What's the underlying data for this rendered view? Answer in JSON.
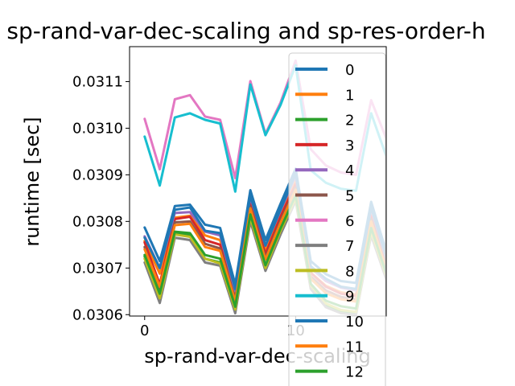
{
  "chart_data": {
    "type": "line",
    "title": "sp-rand-var-dec-scaling and sp-res-order-h",
    "xlabel": "sp-rand-var-dec-scaling",
    "ylabel": "runtime [sec]",
    "xlim": [
      -1,
      16
    ],
    "ylim": [
      0.030597,
      0.031175
    ],
    "xticks": [
      {
        "value": 0,
        "label": "0"
      },
      {
        "value": 10,
        "label": "10"
      }
    ],
    "yticks": [
      {
        "value": 0.0306,
        "label": "0.0306"
      },
      {
        "value": 0.0307,
        "label": "0.0307"
      },
      {
        "value": 0.0308,
        "label": "0.0308"
      },
      {
        "value": 0.0309,
        "label": "0.0309"
      },
      {
        "value": 0.031,
        "label": "0.0310"
      },
      {
        "value": 0.0311,
        "label": "0.0311"
      }
    ],
    "x": [
      0,
      1,
      2,
      3,
      4,
      5,
      6,
      7,
      8,
      9,
      10,
      11,
      12,
      13,
      14,
      15,
      16
    ],
    "series": [
      {
        "name": "0",
        "color": "#1f77b4",
        "values": [
          0.030787,
          0.030715,
          0.030833,
          0.030836,
          0.030793,
          0.030786,
          0.030665,
          0.030867,
          0.03076,
          0.030838,
          0.030913,
          0.030715,
          0.030687,
          0.030672,
          0.030668,
          0.030842,
          0.030735
        ]
      },
      {
        "name": "1",
        "color": "#ff7f0e",
        "values": [
          0.030758,
          0.030688,
          0.030808,
          0.030812,
          0.03077,
          0.03076,
          0.03064,
          0.030845,
          0.030737,
          0.030815,
          0.030888,
          0.03069,
          0.030662,
          0.030648,
          0.030643,
          0.030818,
          0.030712
        ]
      },
      {
        "name": "2",
        "color": "#2ca02c",
        "values": [
          0.030725,
          0.03064,
          0.030775,
          0.03077,
          0.03072,
          0.030712,
          0.030606,
          0.03081,
          0.030698,
          0.030776,
          0.030848,
          0.030659,
          0.030619,
          0.030608,
          0.030603,
          0.030778,
          0.03068
        ]
      },
      {
        "name": "3",
        "color": "#d62728",
        "values": [
          0.030755,
          0.030665,
          0.030805,
          0.03081,
          0.03076,
          0.03075,
          0.030638,
          0.030838,
          0.03073,
          0.03081,
          0.03088,
          0.03069,
          0.03066,
          0.030645,
          0.03064,
          0.030812,
          0.030708
        ]
      },
      {
        "name": "4",
        "color": "#9467bd",
        "values": [
          0.030768,
          0.0307,
          0.030818,
          0.03082,
          0.030778,
          0.03077,
          0.03065,
          0.030852,
          0.030748,
          0.030823,
          0.030897,
          0.0307,
          0.030672,
          0.030658,
          0.030652,
          0.030827,
          0.03072
        ]
      },
      {
        "name": "5",
        "color": "#8c564b",
        "values": [
          0.030745,
          0.030648,
          0.030798,
          0.0308,
          0.030752,
          0.030742,
          0.030633,
          0.030832,
          0.030722,
          0.030802,
          0.030873,
          0.030682,
          0.030652,
          0.030638,
          0.030633,
          0.030805,
          0.0307
        ]
      },
      {
        "name": "6",
        "color": "#e377c2",
        "values": [
          0.03102,
          0.030912,
          0.031062,
          0.031071,
          0.031025,
          0.031018,
          0.030893,
          0.031101,
          0.030988,
          0.031055,
          0.031145,
          0.030955,
          0.03092,
          0.030905,
          0.0309,
          0.03106,
          0.030978
        ]
      },
      {
        "name": "7",
        "color": "#7f7f7f",
        "values": [
          0.030712,
          0.030625,
          0.030765,
          0.03076,
          0.030712,
          0.030705,
          0.030603,
          0.0308,
          0.030694,
          0.030772,
          0.030844,
          0.030655,
          0.030616,
          0.030603,
          0.0306,
          0.03077,
          0.030676
        ]
      },
      {
        "name": "8",
        "color": "#bcbd22",
        "values": [
          0.03072,
          0.030635,
          0.030772,
          0.030767,
          0.03072,
          0.03071,
          0.030611,
          0.030808,
          0.0307,
          0.03078,
          0.03085,
          0.030663,
          0.030624,
          0.03061,
          0.030606,
          0.030778,
          0.030683
        ]
      },
      {
        "name": "9",
        "color": "#17becf",
        "values": [
          0.030982,
          0.030877,
          0.031023,
          0.031032,
          0.031018,
          0.03101,
          0.030864,
          0.031094,
          0.030985,
          0.03105,
          0.031135,
          0.03091,
          0.030883,
          0.03087,
          0.030866,
          0.031032,
          0.03094
        ]
      },
      {
        "name": "10",
        "color": "#1f77b4",
        "values": [
          0.030765,
          0.0307,
          0.030825,
          0.03083,
          0.03078,
          0.030775,
          0.030655,
          0.030855,
          0.030748,
          0.030826,
          0.030902,
          0.030704,
          0.030677,
          0.03066,
          0.030655,
          0.03083,
          0.030724
        ]
      },
      {
        "name": "11",
        "color": "#ff7f0e",
        "values": [
          0.03074,
          0.03066,
          0.030792,
          0.030795,
          0.030745,
          0.030737,
          0.030628,
          0.030828,
          0.030718,
          0.030797,
          0.030868,
          0.030677,
          0.030646,
          0.030633,
          0.030628,
          0.0308,
          0.030697
        ]
      },
      {
        "name": "12",
        "color": "#2ca02c",
        "values": [
          0.030728,
          0.030645,
          0.030778,
          0.030775,
          0.030728,
          0.03072,
          0.030617,
          0.030815,
          0.030706,
          0.030785,
          0.030856,
          0.030666,
          0.03063,
          0.030618,
          0.030613,
          0.030786,
          0.030688
        ]
      }
    ]
  }
}
